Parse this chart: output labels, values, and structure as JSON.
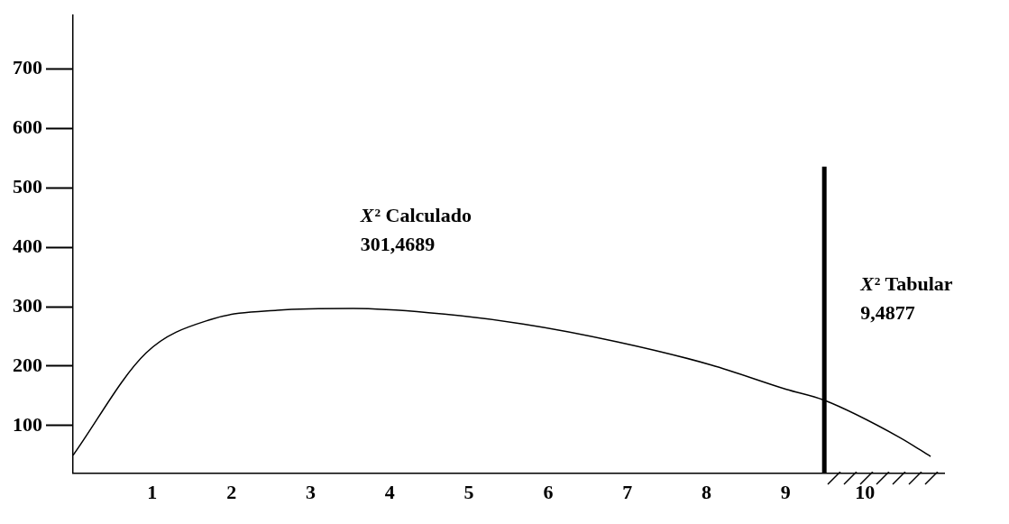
{
  "chart_data": {
    "type": "line",
    "x": [
      0,
      0.92,
      1.75,
      2.58,
      3.54,
      4.49,
      5.68,
      6.87,
      8.06,
      9.01,
      9.48,
      10.44,
      10.83
    ],
    "series": [
      {
        "color": "#000000",
        "values": [
          50,
          222,
          279,
          294,
          297,
          290,
          271,
          241,
          202,
          161,
          143,
          80,
          48
        ]
      }
    ],
    "xlim": [
      0,
      11
    ],
    "ylim": [
      20,
      790
    ],
    "xticks": [
      1,
      2,
      3,
      4,
      5,
      6,
      7,
      8,
      9,
      10
    ],
    "yticks": [
      100,
      200,
      300,
      400,
      500,
      600,
      700
    ],
    "grid": false,
    "legend": false,
    "marker": "none",
    "line_style": "solid",
    "ref_lines": [
      {
        "axis": "x",
        "value": 9.4877,
        "label": "X² Tabular\n9,4877",
        "color": "#000000"
      }
    ],
    "annotations": [
      "X² Calculado\n301,4689"
    ]
  }
}
